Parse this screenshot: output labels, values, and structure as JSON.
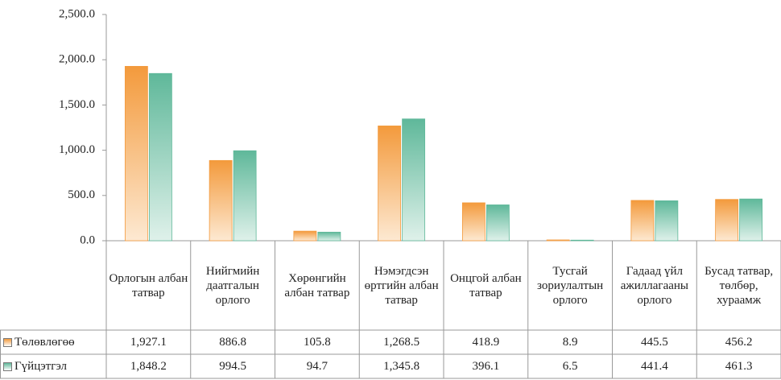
{
  "chart_data": {
    "type": "bar",
    "categories": [
      "Орлогын албан татвар",
      "Нийгмийн даатгалын орлого",
      "Хөрөнгийн албан татвар",
      "Нэмэгдсэн өртгийн албан татвар",
      "Онцгой албан татвар",
      "Тусгай зориулалтын орлого",
      "Гадаад үйл ажиллагааны орлого",
      "Бусад татвар, төлбөр, хураамж"
    ],
    "series": [
      {
        "name": "Төлөвлөгөө",
        "color": "#f39a3c",
        "values": [
          1927.1,
          886.8,
          105.8,
          1268.5,
          418.9,
          8.9,
          445.5,
          456.2
        ],
        "value_labels": [
          "1,927.1",
          "886.8",
          "105.8",
          "1,268.5",
          "418.9",
          "8.9",
          "445.5",
          "456.2"
        ]
      },
      {
        "name": "Гүйцэтгэл",
        "color": "#5fb89a",
        "values": [
          1848.2,
          994.5,
          94.7,
          1345.8,
          396.1,
          6.5,
          441.4,
          461.3
        ],
        "value_labels": [
          "1,848.2",
          "994.5",
          "94.7",
          "1,345.8",
          "396.1",
          "6.5",
          "441.4",
          "461.3"
        ]
      }
    ],
    "ylim": [
      0,
      2500
    ],
    "yticks": [
      {
        "value": 0,
        "label": "0.0"
      },
      {
        "value": 500,
        "label": "500.0"
      },
      {
        "value": 1000,
        "label": "1,000.0"
      },
      {
        "value": 1500,
        "label": "1,500.0"
      },
      {
        "value": 2000,
        "label": "2,000.0"
      },
      {
        "value": 2500,
        "label": "2,500.0"
      }
    ],
    "grid": false,
    "legend": "table"
  }
}
